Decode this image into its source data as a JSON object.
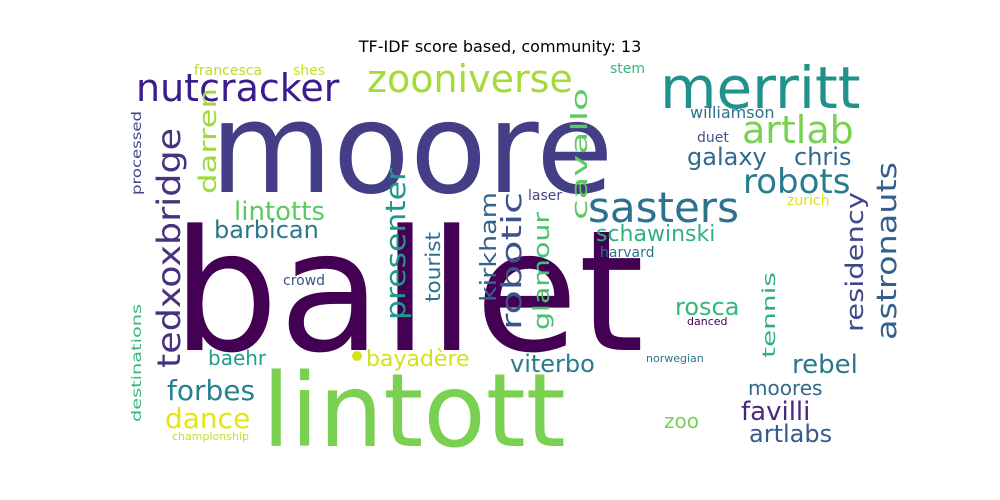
{
  "chart_data": {
    "type": "wordcloud",
    "title": "TF-IDF score based, community: 13",
    "words": [
      {
        "text": "ballet",
        "color": "#440154"
      },
      {
        "text": "moore",
        "color": "#433e85"
      },
      {
        "text": "lintott",
        "color": "#7ad151"
      },
      {
        "text": "merritt",
        "color": "#21918c"
      },
      {
        "text": "zooniverse",
        "color": "#a5db36"
      },
      {
        "text": "nutcracker",
        "color": "#3b1c8c"
      },
      {
        "text": "artlab",
        "color": "#7ad151"
      },
      {
        "text": "tedxoxbridge",
        "color": "#46327e"
      },
      {
        "text": "sasters",
        "color": "#2c728e"
      },
      {
        "text": "robots",
        "color": "#287c8e"
      },
      {
        "text": "galaxy",
        "color": "#31688e"
      },
      {
        "text": "chris",
        "color": "#31688e"
      },
      {
        "text": "lintotts",
        "color": "#5ec962"
      },
      {
        "text": "astronauts",
        "color": "#355f8d"
      },
      {
        "text": "residency",
        "color": "#3e4989"
      },
      {
        "text": "presenter",
        "color": "#1f988b"
      },
      {
        "text": "barbican",
        "color": "#2a788e"
      },
      {
        "text": "robotic",
        "color": "#3b528b"
      },
      {
        "text": "kirkham",
        "color": "#33638d"
      },
      {
        "text": "glamour",
        "color": "#4ac16d"
      },
      {
        "text": "schawinski",
        "color": "#2db27d"
      },
      {
        "text": "cavallo",
        "color": "#5ec962"
      },
      {
        "text": "darren",
        "color": "#9fda3a"
      },
      {
        "text": "tourist",
        "color": "#2c728e"
      },
      {
        "text": "rosca",
        "color": "#35b779"
      },
      {
        "text": "tennis",
        "color": "#2db27d"
      },
      {
        "text": "rebel",
        "color": "#2a788e"
      },
      {
        "text": "baehr",
        "color": "#1f9e89"
      },
      {
        "text": "bayadère",
        "color": "#d2e21b"
      },
      {
        "text": "viterbo",
        "color": "#287c8e"
      },
      {
        "text": "forbes",
        "color": "#26828e"
      },
      {
        "text": "dance",
        "color": "#e5e419"
      },
      {
        "text": "moores",
        "color": "#31688e"
      },
      {
        "text": "favilli",
        "color": "#482878"
      },
      {
        "text": "artlabs",
        "color": "#38598c"
      },
      {
        "text": "zoo",
        "color": "#7ad151"
      },
      {
        "text": "williamson",
        "color": "#2c728e"
      },
      {
        "text": "duet",
        "color": "#3b528b"
      },
      {
        "text": "laser",
        "color": "#414487"
      },
      {
        "text": "zurich",
        "color": "#d8e219"
      },
      {
        "text": "harvard",
        "color": "#2a788e"
      },
      {
        "text": "crowd",
        "color": "#3b528b"
      },
      {
        "text": "francesca",
        "color": "#b5de2b"
      },
      {
        "text": "shes",
        "color": "#c8e020"
      },
      {
        "text": "stem",
        "color": "#35b779"
      },
      {
        "text": "processed",
        "color": "#414487"
      },
      {
        "text": "destinations",
        "color": "#35b779"
      },
      {
        "text": "championship",
        "color": "#c2df23"
      },
      {
        "text": "norwegian",
        "color": "#2a788e"
      },
      {
        "text": "danced",
        "color": "#440154"
      }
    ]
  }
}
